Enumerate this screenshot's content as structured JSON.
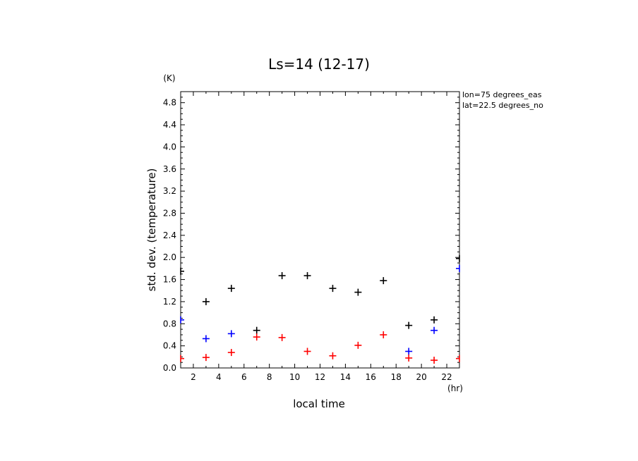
{
  "chart_data": {
    "type": "scatter",
    "title": "Ls=14 (12-17)",
    "xlabel": "local time",
    "ylabel": "std. dev. (temperature)",
    "x_unit": "(hr)",
    "y_unit": "(K)",
    "xlim": [
      1,
      23
    ],
    "ylim": [
      0.0,
      5.0
    ],
    "x_ticks": [
      2,
      4,
      6,
      8,
      10,
      12,
      14,
      16,
      18,
      20,
      22
    ],
    "y_ticks": [
      0.0,
      0.4,
      0.8,
      1.2,
      1.6,
      2.0,
      2.4,
      2.8,
      3.2,
      3.6,
      4.0,
      4.4,
      4.8
    ],
    "y_tick_labels": [
      "0.0",
      "0.4",
      "0.8",
      "1.2",
      "1.6",
      "2.0",
      "2.4",
      "2.8",
      "3.2",
      "3.6",
      "4.0",
      "4.4",
      "4.8"
    ],
    "annotations": [
      "lon=75 degrees_eas",
      "lat=22.5 degrees_no"
    ],
    "grid": false,
    "series": [
      {
        "color": "#000000",
        "marker": "plus",
        "points": [
          [
            1,
            1.75
          ],
          [
            3,
            1.2
          ],
          [
            5,
            1.44
          ],
          [
            7,
            0.68
          ],
          [
            9,
            1.67
          ],
          [
            11,
            1.67
          ],
          [
            13,
            1.44
          ],
          [
            15,
            1.37
          ],
          [
            17,
            1.58
          ],
          [
            19,
            0.77
          ],
          [
            21,
            0.87
          ],
          [
            23,
            1.98
          ]
        ]
      },
      {
        "color": "#0000ff",
        "marker": "plus",
        "points": [
          [
            1,
            0.87
          ],
          [
            3,
            0.53
          ],
          [
            5,
            0.62
          ],
          [
            19,
            0.3
          ],
          [
            21,
            0.68
          ],
          [
            23,
            1.8
          ]
        ]
      },
      {
        "color": "#ff0000",
        "marker": "plus",
        "points": [
          [
            1,
            0.17
          ],
          [
            3,
            0.19
          ],
          [
            5,
            0.28
          ],
          [
            7,
            0.56
          ],
          [
            9,
            0.55
          ],
          [
            11,
            0.3
          ],
          [
            13,
            0.22
          ],
          [
            15,
            0.41
          ],
          [
            17,
            0.6
          ],
          [
            19,
            0.18
          ],
          [
            21,
            0.14
          ],
          [
            23,
            0.17
          ]
        ]
      }
    ]
  }
}
